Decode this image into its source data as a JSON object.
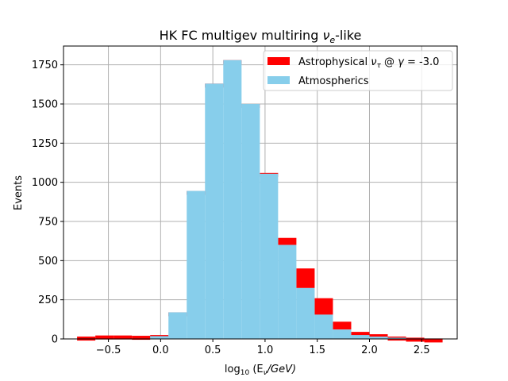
{
  "chart_data": {
    "type": "bar",
    "title": "HK FC multigev multiring ν_e-like",
    "title_parts": {
      "main": "HK FC multigev multiring ",
      "nu": "ν",
      "sub": "e",
      "tail": "-like"
    },
    "xlabel_parts": {
      "pre": "log",
      "sub10": "10",
      "mid": " (E",
      "subnu": "ν",
      "post": "/GeV)"
    },
    "ylabel": "Events",
    "xlim": [
      -0.93,
      2.84
    ],
    "ylim": [
      0,
      1870
    ],
    "x_ticks": [
      -0.5,
      0.0,
      0.5,
      1.0,
      1.5,
      2.0,
      2.5
    ],
    "x_tick_labels": [
      "−0.5",
      "0.0",
      "0.5",
      "1.0",
      "1.5",
      "2.0",
      "2.5"
    ],
    "y_ticks": [
      0,
      250,
      500,
      750,
      1000,
      1250,
      1500,
      1750
    ],
    "y_tick_labels": [
      "0",
      "250",
      "500",
      "750",
      "1000",
      "1250",
      "1500",
      "1750"
    ],
    "grid": true,
    "legend_position": "top-right",
    "bin_edges": [
      -0.8,
      -0.625,
      -0.45,
      -0.275,
      -0.1,
      0.075,
      0.25,
      0.425,
      0.6,
      0.775,
      0.95,
      1.125,
      1.3,
      1.475,
      1.65,
      1.825,
      2.0,
      2.175,
      2.35,
      2.525,
      2.7
    ],
    "series": [
      {
        "name": "Astrophysical ν_τ @ γ = -3.0",
        "label_parts": {
          "pre": "Astrophysical ",
          "nu": "ν",
          "sub": "τ",
          "post": " @ ",
          "gamma": "γ",
          "eq": " = -3.0"
        },
        "color": "#ff0000",
        "style": "step-top",
        "tops": [
          15,
          22,
          22,
          20,
          25,
          170,
          945,
          1630,
          1780,
          1500,
          1060,
          645,
          450,
          260,
          110,
          45,
          30,
          15,
          8,
          3
        ]
      },
      {
        "name": "Atmospherics",
        "color": "#87ceeb",
        "style": "filled",
        "values": [
          0,
          0,
          0,
          0,
          18,
          170,
          945,
          1630,
          1780,
          1500,
          1055,
          600,
          325,
          155,
          60,
          25,
          15,
          8,
          3,
          1
        ]
      }
    ]
  }
}
